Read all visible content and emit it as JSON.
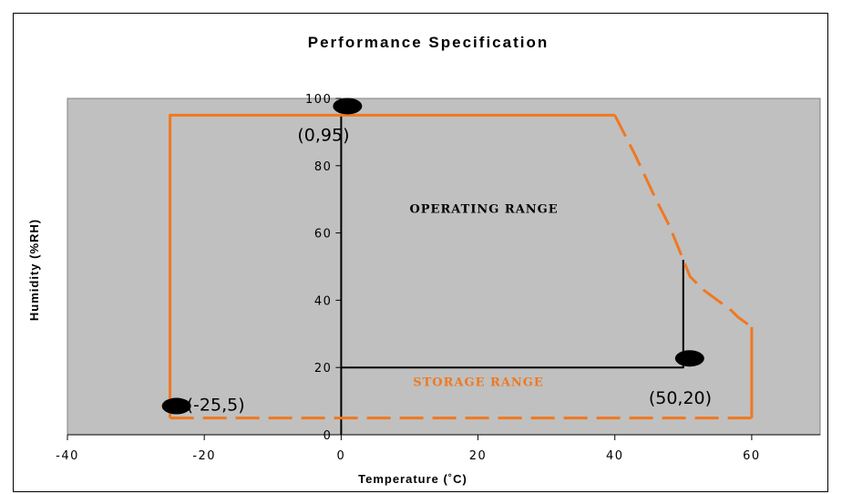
{
  "chart_data": {
    "type": "line",
    "title": "Performance Specification",
    "xlabel": "Temperature (˚C)",
    "ylabel": "Humidity (%RH)",
    "xlim": [
      -40,
      70
    ],
    "ylim": [
      0,
      100
    ],
    "x_ticks": [
      -40,
      -20,
      0,
      20,
      40,
      60
    ],
    "y_ticks": [
      0,
      20,
      40,
      60,
      80,
      100
    ],
    "grid": false,
    "plot_background": "#c0c0c0",
    "series": [
      {
        "color": "#000000",
        "style": "solid",
        "points": [
          [
            0,
            0
          ],
          [
            0,
            95
          ],
          [
            40,
            95
          ]
        ]
      },
      {
        "color": "#000000",
        "style": "solid",
        "points": [
          [
            0,
            20
          ],
          [
            50,
            20
          ],
          [
            50,
            52
          ]
        ]
      },
      {
        "color": "#f07820",
        "style": "solid",
        "points": [
          [
            -25,
            5
          ],
          [
            -25,
            95
          ],
          [
            40,
            95
          ]
        ]
      },
      {
        "color": "#f07820",
        "style": "dashed",
        "points": [
          [
            40,
            95
          ],
          [
            43,
            83
          ],
          [
            46,
            70
          ],
          [
            48,
            62
          ],
          [
            50,
            52
          ],
          [
            51,
            47
          ],
          [
            53,
            43
          ],
          [
            55,
            40
          ],
          [
            57,
            37
          ],
          [
            58,
            35
          ],
          [
            60,
            32
          ]
        ]
      },
      {
        "color": "#f07820",
        "style": "dashed",
        "points": [
          [
            -25,
            5
          ],
          [
            60,
            5
          ]
        ]
      },
      {
        "color": "#f07820",
        "style": "solid",
        "points": [
          [
            60,
            32
          ],
          [
            60,
            5
          ]
        ]
      }
    ],
    "markers": [
      {
        "x": 0,
        "y": 95,
        "label": "(0,95)"
      },
      {
        "x": -25,
        "y": 5,
        "label": "(-25,5)"
      },
      {
        "x": 50,
        "y": 20,
        "label": "(50,20)"
      }
    ],
    "annotations": [
      {
        "text": "OPERATING RANGE",
        "x": 10,
        "y": 66,
        "color": "#000000"
      },
      {
        "text": "STORAGE RANGE",
        "x": 10.5,
        "y": 14.5,
        "color": "#f07820"
      }
    ]
  }
}
